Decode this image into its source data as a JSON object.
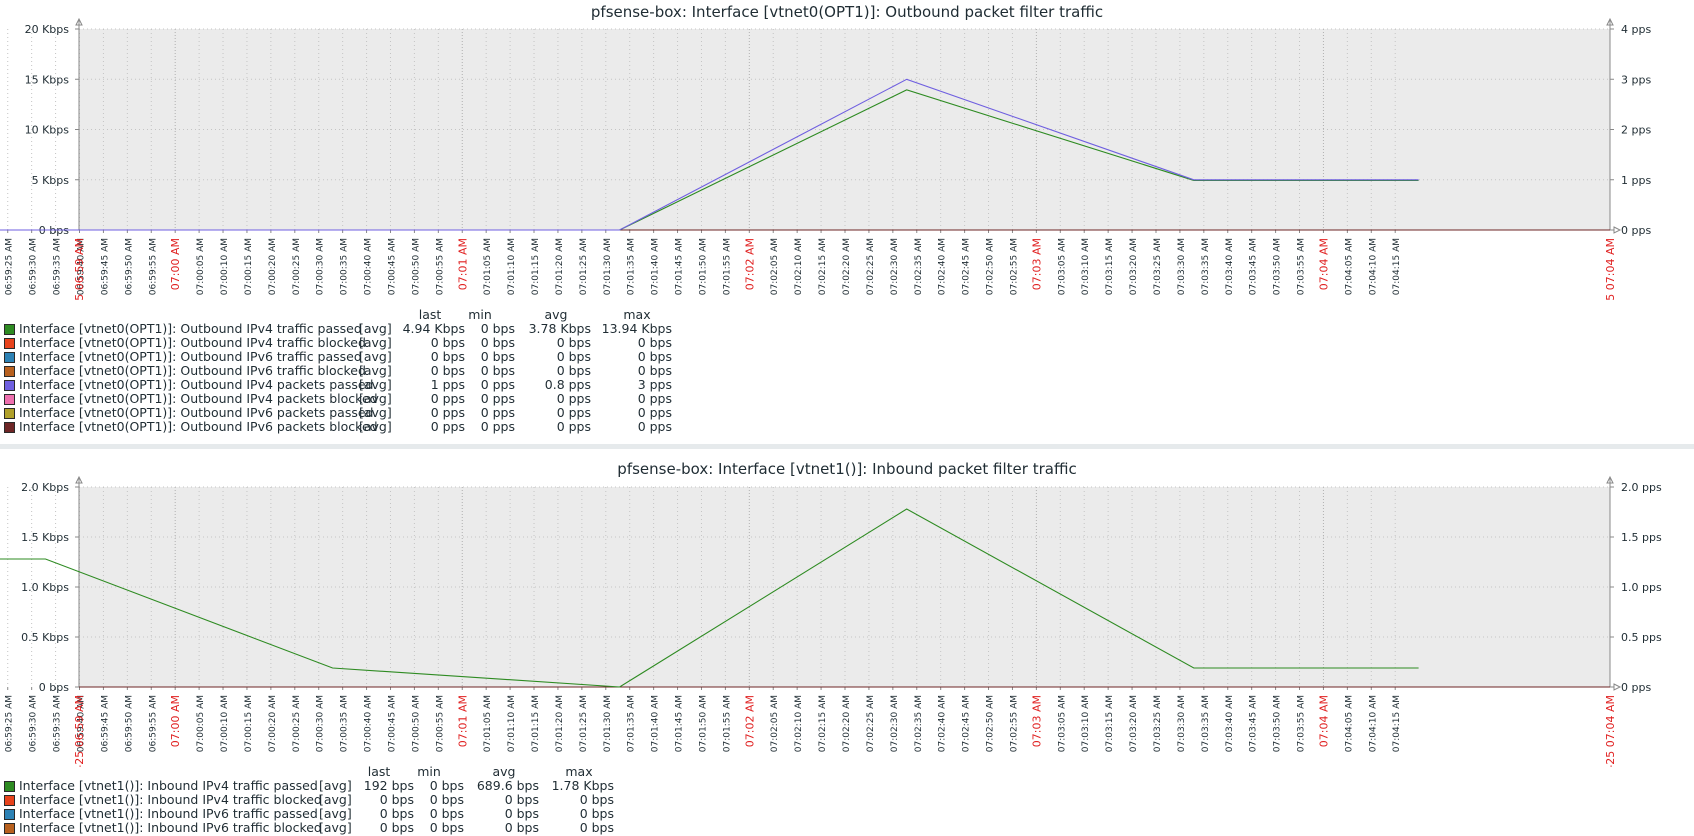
{
  "graphs": [
    {
      "title": "pfsense-box: Interface [vtnet0(OPT1)]: Outbound packet filter traffic",
      "left_axis": {
        "ticks": [
          "20 Kbps",
          "15 Kbps",
          "10 Kbps",
          "5 Kbps",
          "0 bps"
        ],
        "max": 20
      },
      "right_axis": {
        "ticks": [
          "4 pps",
          "3 pps",
          "2 pps",
          "1 pps",
          "0 pps"
        ],
        "max": 4
      },
      "legend_header": {
        "last": "last",
        "min": "min",
        "avg": "avg",
        "max": "max"
      },
      "legend": [
        {
          "name": "Interface [vtnet0(OPT1)]: Outbound IPv4 traffic passed",
          "func": "[avg]",
          "last": "4.94 Kbps",
          "min": "0 bps",
          "avg": "3.78 Kbps",
          "max": "13.94 Kbps",
          "color": "#2e8b22"
        },
        {
          "name": "Interface [vtnet0(OPT1)]: Outbound IPv4 traffic blocked",
          "func": "[avg]",
          "last": "0 bps",
          "min": "0 bps",
          "avg": "0 bps",
          "max": "0 bps",
          "color": "#e8431c"
        },
        {
          "name": "Interface [vtnet0(OPT1)]: Outbound IPv6 traffic passed",
          "func": "[avg]",
          "last": "0 bps",
          "min": "0 bps",
          "avg": "0 bps",
          "max": "0 bps",
          "color": "#2d82b5"
        },
        {
          "name": "Interface [vtnet0(OPT1)]: Outbound IPv6 traffic blocked",
          "func": "[avg]",
          "last": "0 bps",
          "min": "0 bps",
          "avg": "0 bps",
          "max": "0 bps",
          "color": "#b8601e"
        },
        {
          "name": "Interface [vtnet0(OPT1)]: Outbound IPv4 packets passed",
          "func": "[avg]",
          "last": "1 pps",
          "min": "0 pps",
          "avg": "0.8 pps",
          "max": "3 pps",
          "color": "#6f5fe0"
        },
        {
          "name": "Interface [vtnet0(OPT1)]: Outbound IPv4 packets blocked",
          "func": "[avg]",
          "last": "0 pps",
          "min": "0 pps",
          "avg": "0 pps",
          "max": "0 pps",
          "color": "#ee6fae"
        },
        {
          "name": "Interface [vtnet0(OPT1)]: Outbound IPv6 packets passed",
          "func": "[avg]",
          "last": "0 pps",
          "min": "0 pps",
          "avg": "0 pps",
          "max": "0 pps",
          "color": "#b0a02a"
        },
        {
          "name": "Interface [vtnet0(OPT1)]: Outbound IPv6 packets blocked",
          "func": "[avg]",
          "last": "0 pps",
          "min": "0 pps",
          "avg": "0 pps",
          "max": "0 pps",
          "color": "#6e2626"
        }
      ]
    },
    {
      "title": "pfsense-box: Interface [vtnet1()]: Inbound packet filter traffic",
      "left_axis": {
        "ticks": [
          "2.0 Kbps",
          "1.5 Kbps",
          "1.0 Kbps",
          "0.5 Kbps",
          "0 bps"
        ],
        "max": 2
      },
      "right_axis": {
        "ticks": [
          "2.0 pps",
          "1.5 pps",
          "1.0 pps",
          "0.5 pps",
          "0 pps"
        ],
        "max": 2
      },
      "legend_header": {
        "last": "last",
        "min": "min",
        "avg": "avg",
        "max": "max"
      },
      "legend": [
        {
          "name": "Interface [vtnet1()]: Inbound IPv4 traffic passed",
          "func": "[avg]",
          "last": "192 bps",
          "min": "0 bps",
          "avg": "689.6 bps",
          "max": "1.78 Kbps",
          "color": "#2e8b22"
        },
        {
          "name": "Interface [vtnet1()]: Inbound IPv4 traffic blocked",
          "func": "[avg]",
          "last": "0 bps",
          "min": "0 bps",
          "avg": "0 bps",
          "max": "0 bps",
          "color": "#e8431c"
        },
        {
          "name": "Interface [vtnet1()]: Inbound IPv6 traffic passed",
          "func": "[avg]",
          "last": "0 bps",
          "min": "0 bps",
          "avg": "0 bps",
          "max": "0 bps",
          "color": "#2d82b5"
        },
        {
          "name": "Interface [vtnet1()]: Inbound IPv6 traffic blocked",
          "func": "[avg]",
          "last": "0 bps",
          "min": "0 bps",
          "avg": "0 bps",
          "max": "0 bps",
          "color": "#b8601e"
        }
      ]
    }
  ],
  "x_axis": {
    "start_label": "04-25 06:59 AM",
    "end_label": "04-25 07:04 AM",
    "ticks": [
      "06:59:25 AM",
      "06:59:30 AM",
      "06:59:35 AM",
      "06:59:40 AM",
      "06:59:45 AM",
      "06:59:50 AM",
      "06:59:55 AM",
      "07:00 AM",
      "07:00:05 AM",
      "07:00:10 AM",
      "07:00:15 AM",
      "07:00:20 AM",
      "07:00:25 AM",
      "07:00:30 AM",
      "07:00:35 AM",
      "07:00:40 AM",
      "07:00:45 AM",
      "07:00:50 AM",
      "07:00:55 AM",
      "07:01 AM",
      "07:01:05 AM",
      "07:01:10 AM",
      "07:01:15 AM",
      "07:01:20 AM",
      "07:01:25 AM",
      "07:01:30 AM",
      "07:01:35 AM",
      "07:01:40 AM",
      "07:01:45 AM",
      "07:01:50 AM",
      "07:01:55 AM",
      "07:02 AM",
      "07:02:05 AM",
      "07:02:10 AM",
      "07:02:15 AM",
      "07:02:20 AM",
      "07:02:25 AM",
      "07:02:30 AM",
      "07:02:35 AM",
      "07:02:40 AM",
      "07:02:45 AM",
      "07:02:50 AM",
      "07:02:55 AM",
      "07:03 AM",
      "07:03:05 AM",
      "07:03:10 AM",
      "07:03:15 AM",
      "07:03:20 AM",
      "07:03:25 AM",
      "07:03:30 AM",
      "07:03:35 AM",
      "07:03:40 AM",
      "07:03:45 AM",
      "07:03:50 AM",
      "07:03:55 AM",
      "07:04 AM",
      "07:04:05 AM",
      "07:04:10 AM",
      "07:04:15 AM"
    ],
    "highlight_ticks": [
      "07:00 AM",
      "07:01 AM",
      "07:02 AM",
      "07:03 AM",
      "07:04 AM"
    ]
  },
  "colors": {
    "plot_bg": "#ebebeb",
    "grid": "#c4c4c4",
    "axis": "#888888",
    "highlight": "#e02020"
  },
  "chart_data": [
    {
      "type": "line",
      "title": "pfsense-box: Interface [vtnet0(OPT1)]: Outbound packet filter traffic",
      "x": [
        "06:59:20 AM",
        "07:01:33 AM",
        "07:02:33 AM",
        "07:03:33 AM",
        "07:04:20 AM"
      ],
      "ylabel_left_units": "Kbps",
      "ylabel_right_units": "pps",
      "ylim_left": [
        0,
        20
      ],
      "ylim_right": [
        0,
        4
      ],
      "grid": true,
      "series": [
        {
          "name": "Interface [vtnet0(OPT1)]: Outbound IPv4 traffic passed",
          "axis": "left",
          "values": [
            0,
            0,
            13.94,
            4.94,
            4.94
          ]
        },
        {
          "name": "Interface [vtnet0(OPT1)]: Outbound IPv4 packets passed",
          "axis": "right",
          "values": [
            0,
            0,
            3,
            1,
            1
          ]
        }
      ]
    },
    {
      "type": "line",
      "title": "pfsense-box: Interface [vtnet1()]: Inbound packet filter traffic",
      "x": [
        "06:59:20 AM",
        "06:59:33 AM",
        "07:00:33 AM",
        "07:01:33 AM",
        "07:02:33 AM",
        "07:03:33 AM",
        "07:04:20 AM"
      ],
      "ylabel_left_units": "Kbps",
      "ylabel_right_units": "pps",
      "ylim_left": [
        0,
        2
      ],
      "ylim_right": [
        0,
        2
      ],
      "grid": true,
      "series": [
        {
          "name": "Interface [vtnet1()]: Inbound IPv4 traffic passed",
          "axis": "left",
          "values": [
            1.28,
            1.28,
            0.19,
            0,
            1.78,
            0.19,
            0.19
          ]
        },
        {
          "name": "Interface [vtnet1()]: Inbound IPv4 packets passed",
          "axis": "right",
          "values": [
            1,
            1,
            0,
            0,
            1,
            0,
            0
          ]
        }
      ]
    }
  ]
}
